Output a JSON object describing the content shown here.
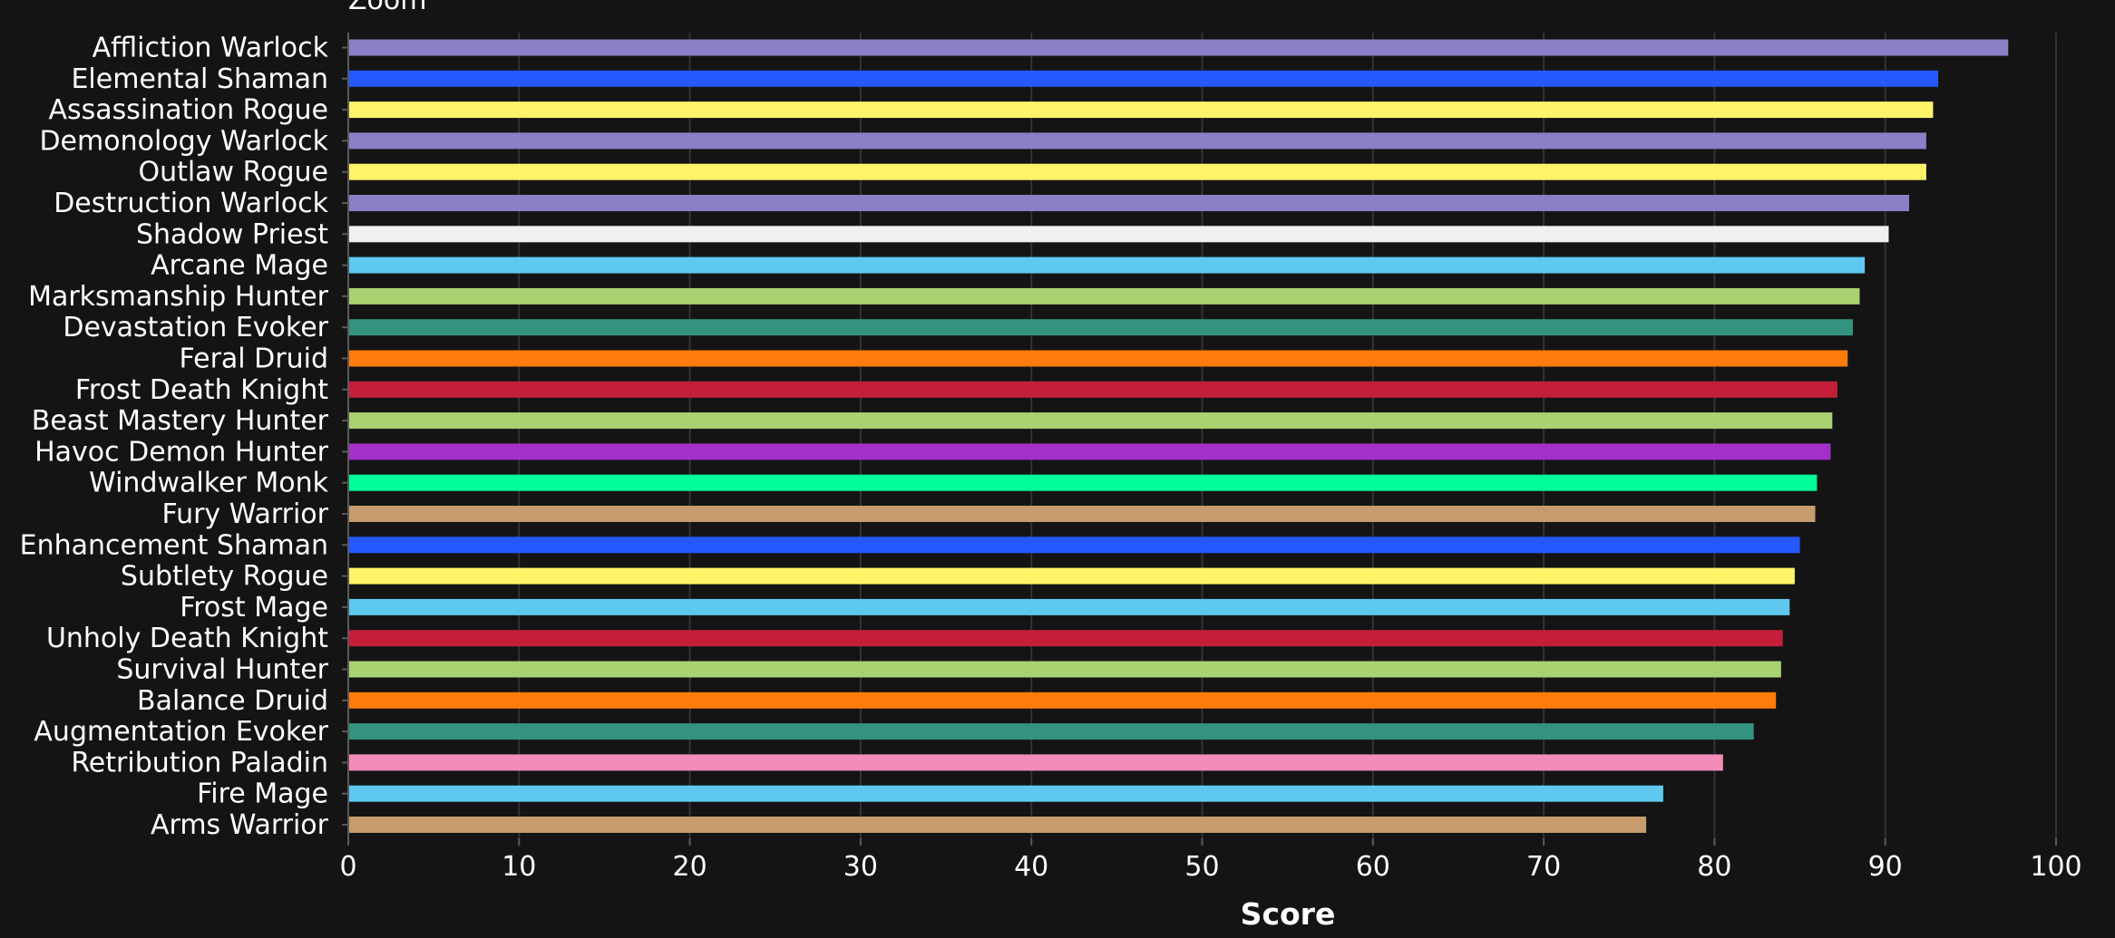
{
  "toolbar": {
    "zoom_label": "Zoom"
  },
  "colors": {
    "background": "#141414",
    "grid": "#333333",
    "axis": "#5a5a5a",
    "text": "#ffffff"
  },
  "chart_data": {
    "type": "bar",
    "orientation": "horizontal",
    "xlabel": "Score",
    "ylabel": "",
    "xlim": [
      0,
      100
    ],
    "xticks": [
      0,
      10,
      20,
      30,
      40,
      50,
      60,
      70,
      80,
      90,
      100
    ],
    "grid": true,
    "categories": [
      "Affliction Warlock",
      "Elemental Shaman",
      "Assassination Rogue",
      "Demonology Warlock",
      "Outlaw Rogue",
      "Destruction Warlock",
      "Shadow Priest",
      "Arcane Mage",
      "Marksmanship Hunter",
      "Devastation Evoker",
      "Feral Druid",
      "Frost Death Knight",
      "Beast Mastery Hunter",
      "Havoc Demon Hunter",
      "Windwalker Monk",
      "Fury Warrior",
      "Enhancement Shaman",
      "Subtlety Rogue",
      "Frost Mage",
      "Unholy Death Knight",
      "Survival Hunter",
      "Balance Druid",
      "Augmentation Evoker",
      "Retribution Paladin",
      "Fire Mage",
      "Arms Warrior"
    ],
    "values": [
      97.2,
      93.1,
      92.8,
      92.4,
      92.4,
      91.4,
      90.2,
      88.8,
      88.5,
      88.1,
      87.8,
      87.2,
      86.9,
      86.8,
      86.0,
      85.9,
      85.0,
      84.7,
      84.4,
      84.0,
      83.9,
      83.6,
      82.3,
      80.5,
      77.0,
      76.0
    ],
    "bar_colors": [
      "#8b7fc7",
      "#2459ff",
      "#fff468",
      "#8b7fc7",
      "#fff468",
      "#8b7fc7",
      "#f0f0f0",
      "#5ec8ef",
      "#a9d271",
      "#33937f",
      "#ff7c0a",
      "#c41e3a",
      "#a9d271",
      "#a330c9",
      "#00ff98",
      "#c69b6d",
      "#2459ff",
      "#fff468",
      "#5ec8ef",
      "#c41e3a",
      "#a9d271",
      "#ff7c0a",
      "#33937f",
      "#f48cba",
      "#5ec8ef",
      "#c69b6d"
    ]
  }
}
